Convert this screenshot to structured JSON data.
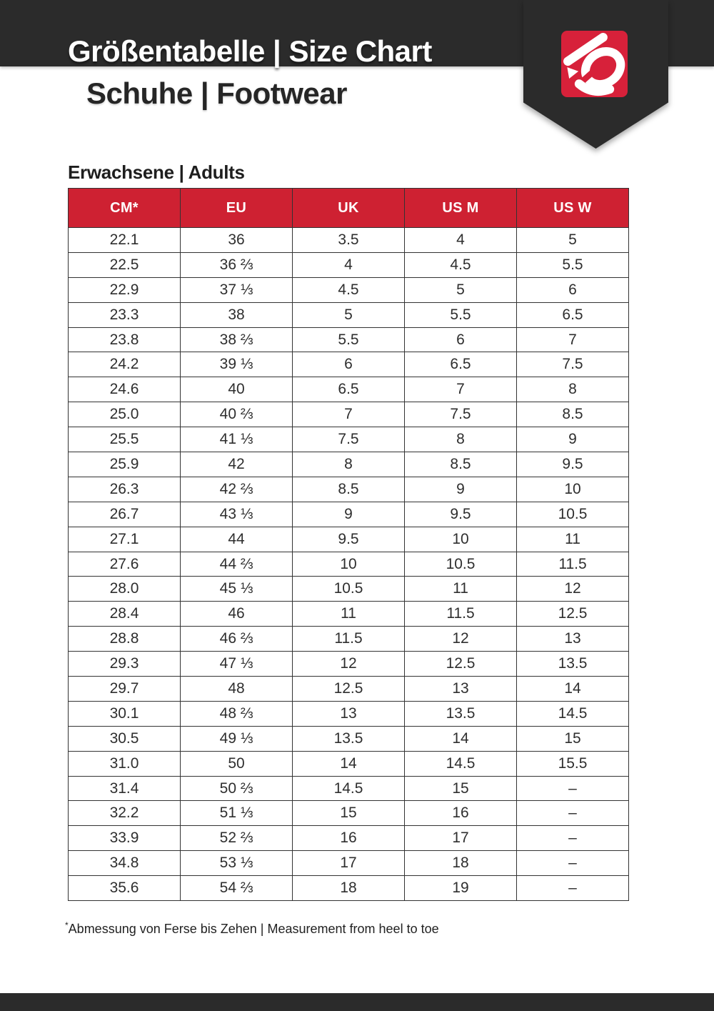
{
  "header": {
    "title": "Größentabelle | Size Chart",
    "subtitle": "Schuhe | Footwear"
  },
  "brand": {
    "logo_icon": "five-ten-logo"
  },
  "section": {
    "title": "Erwachsene | Adults"
  },
  "table": {
    "columns": [
      "CM*",
      "EU",
      "UK",
      "US M",
      "US W"
    ],
    "rows": [
      [
        "22.1",
        "36",
        "3.5",
        "4",
        "5"
      ],
      [
        "22.5",
        "36 ⅔",
        "4",
        "4.5",
        "5.5"
      ],
      [
        "22.9",
        "37 ⅓",
        "4.5",
        "5",
        "6"
      ],
      [
        "23.3",
        "38",
        "5",
        "5.5",
        "6.5"
      ],
      [
        "23.8",
        "38 ⅔",
        "5.5",
        "6",
        "7"
      ],
      [
        "24.2",
        "39 ⅓",
        "6",
        "6.5",
        "7.5"
      ],
      [
        "24.6",
        "40",
        "6.5",
        "7",
        "8"
      ],
      [
        "25.0",
        "40 ⅔",
        "7",
        "7.5",
        "8.5"
      ],
      [
        "25.5",
        "41 ⅓",
        "7.5",
        "8",
        "9"
      ],
      [
        "25.9",
        "42",
        "8",
        "8.5",
        "9.5"
      ],
      [
        "26.3",
        "42 ⅔",
        "8.5",
        "9",
        "10"
      ],
      [
        "26.7",
        "43 ⅓",
        "9",
        "9.5",
        "10.5"
      ],
      [
        "27.1",
        "44",
        "9.5",
        "10",
        "11"
      ],
      [
        "27.6",
        "44 ⅔",
        "10",
        "10.5",
        "11.5"
      ],
      [
        "28.0",
        "45 ⅓",
        "10.5",
        "11",
        "12"
      ],
      [
        "28.4",
        "46",
        "11",
        "11.5",
        "12.5"
      ],
      [
        "28.8",
        "46 ⅔",
        "11.5",
        "12",
        "13"
      ],
      [
        "29.3",
        "47 ⅓",
        "12",
        "12.5",
        "13.5"
      ],
      [
        "29.7",
        "48",
        "12.5",
        "13",
        "14"
      ],
      [
        "30.1",
        "48 ⅔",
        "13",
        "13.5",
        "14.5"
      ],
      [
        "30.5",
        "49 ⅓",
        "13.5",
        "14",
        "15"
      ],
      [
        "31.0",
        "50",
        "14",
        "14.5",
        "15.5"
      ],
      [
        "31.4",
        "50 ⅔",
        "14.5",
        "15",
        "–"
      ],
      [
        "32.2",
        "51 ⅓",
        "15",
        "16",
        "–"
      ],
      [
        "33.9",
        "52 ⅔",
        "16",
        "17",
        "–"
      ],
      [
        "34.8",
        "53 ⅓",
        "17",
        "18",
        "–"
      ],
      [
        "35.6",
        "54 ⅔",
        "18",
        "19",
        "–"
      ]
    ]
  },
  "footnote": {
    "marker": "*",
    "text": "Abmessung von Ferse bis Zehen | Measurement from heel to toe"
  },
  "colors": {
    "band_dark": "#2b2b2b",
    "header_red": "#ce2132",
    "logo_red": "#d7213a",
    "border": "#333333",
    "text_dark": "#2e2e2e",
    "header_text": "#ffffff"
  }
}
